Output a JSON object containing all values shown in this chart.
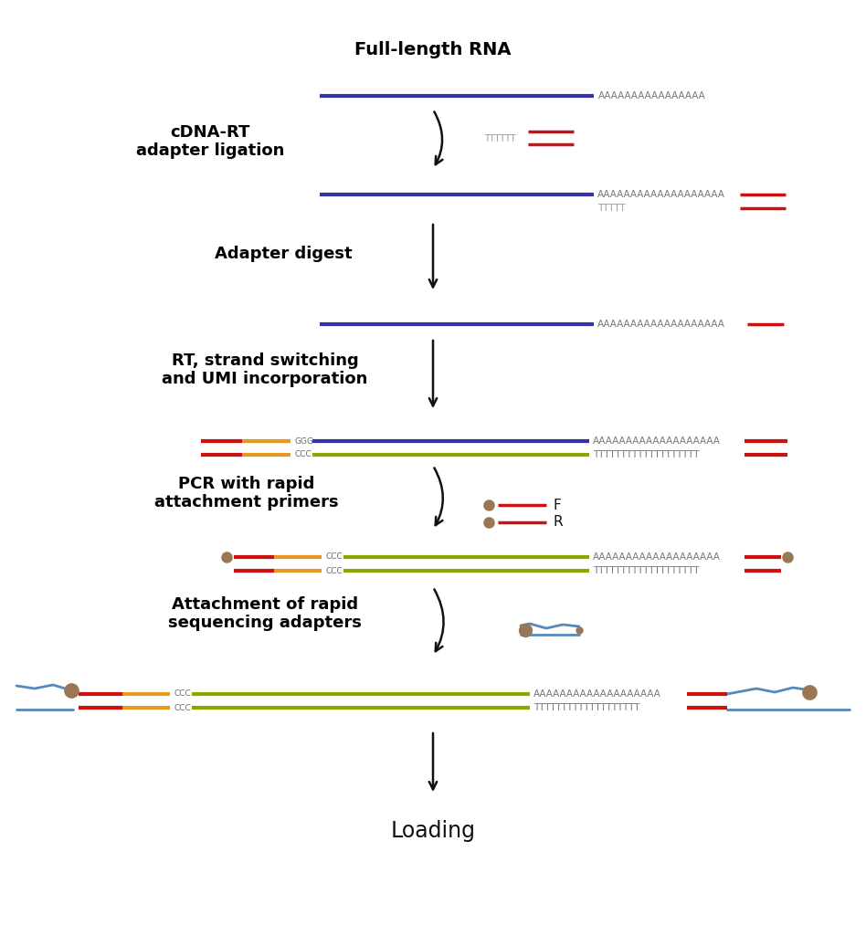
{
  "background_color": "#ffffff",
  "colors": {
    "blue_dark": "#3333aa",
    "red": "#cc1111",
    "orange": "#e89820",
    "green_olive": "#88aa00",
    "tan": "#997755",
    "adapter_blue": "#5588bb",
    "text_gray": "#888888",
    "black": "#111111"
  },
  "text": {
    "full_length_rna": "Full-length RNA",
    "cdna_rt": "cDNA-RT\nadapter ligation",
    "adapter_digest": "Adapter digest",
    "rt_strand": "RT, strand switching\nand UMI incorporation",
    "pcr": "PCR with rapid\nattachment primers",
    "attachment": "Attachment of rapid\nsequencing adapters",
    "loading": "Loading",
    "F": "F",
    "R": "R",
    "AAAA_short": "AAAAAAAAAAAAAAAA",
    "AAAA_long": "AAAAAAAAAAAAAAAAAAA",
    "TTTT_short": "TTTTT",
    "TTTTTT": "TTTTTT",
    "TTTT_long": "TTTTTTTTTTTTTTTTTTT",
    "GGG": "GGG",
    "CCC": "CCC"
  }
}
